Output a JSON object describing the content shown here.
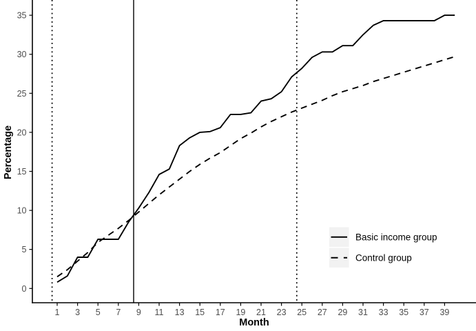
{
  "figure": {
    "background": "#FFFFFF"
  },
  "colors": {
    "series_line": "#000000",
    "axis_line": "#000000",
    "tick_label": "#4D4D4D",
    "axis_title": "#000000",
    "legend_key_background": "#F2F2F2",
    "reference_line": "#000000"
  },
  "chart_data": {
    "type": "line",
    "xlabel": "Month",
    "ylabel": "Percentage",
    "x_ticks": [
      1,
      3,
      5,
      7,
      9,
      11,
      13,
      15,
      17,
      19,
      21,
      23,
      25,
      27,
      29,
      31,
      33,
      35,
      37,
      39
    ],
    "y_ticks": [
      0,
      5,
      10,
      15,
      20,
      25,
      30,
      35
    ],
    "xlim": [
      -1.4,
      42.1
    ],
    "ylim": [
      -1.8,
      37.0
    ],
    "grid": "none",
    "x": [
      1,
      2,
      3,
      4,
      5,
      6,
      7,
      8,
      9,
      10,
      11,
      12,
      13,
      14,
      15,
      16,
      17,
      18,
      19,
      20,
      21,
      22,
      23,
      24,
      25,
      26,
      27,
      28,
      29,
      30,
      31,
      32,
      33,
      34,
      35,
      36,
      37,
      38,
      39,
      40
    ],
    "series": [
      {
        "name": "Basic income group",
        "line_style": "solid",
        "color": "#000000",
        "values": [
          0.8,
          1.6,
          4.0,
          4.0,
          6.3,
          6.3,
          6.3,
          8.5,
          10.3,
          12.3,
          14.6,
          15.3,
          18.3,
          19.3,
          20.0,
          20.1,
          20.6,
          22.3,
          22.3,
          22.5,
          24.0,
          24.3,
          25.2,
          27.1,
          28.2,
          29.6,
          30.3,
          30.3,
          31.1,
          31.1,
          32.5,
          33.7,
          34.3,
          34.3,
          34.3,
          34.3,
          34.3,
          34.3,
          35.0,
          35.0
        ]
      },
      {
        "name": "Control group",
        "line_style": "dashed",
        "color": "#000000",
        "values": [
          1.5,
          2.4,
          3.5,
          4.6,
          5.9,
          6.8,
          7.7,
          8.7,
          9.8,
          10.9,
          12.0,
          13.0,
          14.0,
          15.0,
          15.9,
          16.7,
          17.4,
          18.3,
          19.2,
          19.9,
          20.7,
          21.4,
          22.0,
          22.6,
          23.1,
          23.6,
          24.1,
          24.7,
          25.2,
          25.6,
          26.0,
          26.5,
          26.9,
          27.3,
          27.7,
          28.1,
          28.5,
          28.9,
          29.3,
          29.7
        ]
      }
    ],
    "reference_lines": [
      {
        "x": 0.5,
        "style": "dotted"
      },
      {
        "x": 8.5,
        "style": "solid"
      },
      {
        "x": 24.5,
        "style": "dotted"
      }
    ],
    "legend": {
      "position": "inside-right-lower",
      "entries": [
        "Basic income group",
        "Control group"
      ]
    }
  }
}
